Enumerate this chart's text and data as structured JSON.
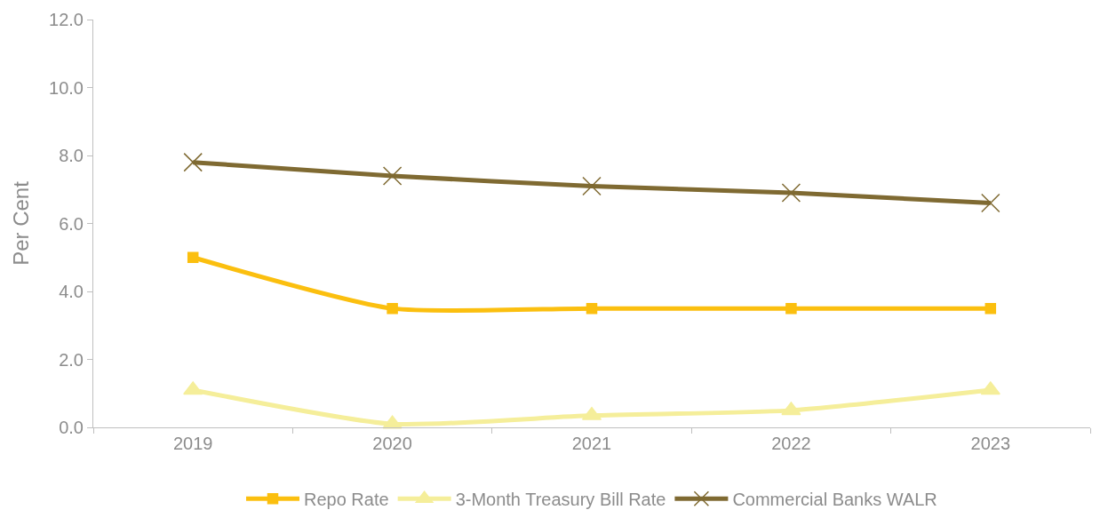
{
  "chart_data": {
    "type": "line",
    "ylabel": "Per Cent",
    "categories": [
      "2019",
      "2020",
      "2021",
      "2022",
      "2023"
    ],
    "series": [
      {
        "name": "Repo Rate",
        "color": "#fbbf0f",
        "marker": "square",
        "values": [
          5.0,
          3.5,
          3.5,
          3.5,
          3.5
        ]
      },
      {
        "name": "3-Month Treasury Bill Rate",
        "color": "#f5ee9a",
        "marker": "triangle",
        "values": [
          1.1,
          0.1,
          0.35,
          0.5,
          1.1
        ]
      },
      {
        "name": "Commercial Banks WALR",
        "color": "#7f6a32",
        "marker": "cross",
        "values": [
          7.8,
          7.4,
          7.1,
          6.9,
          6.6
        ]
      }
    ],
    "ylim": [
      0,
      12
    ],
    "yticks": [
      {
        "value": 0,
        "label": "0.0"
      },
      {
        "value": 2,
        "label": "2.0"
      },
      {
        "value": 4,
        "label": "4.0"
      },
      {
        "value": 6,
        "label": "6.0"
      },
      {
        "value": 8,
        "label": "8.0"
      },
      {
        "value": 10,
        "label": "10.0"
      },
      {
        "value": 12,
        "label": "12.0"
      }
    ],
    "legend": "bottom",
    "line_style": "solid"
  }
}
